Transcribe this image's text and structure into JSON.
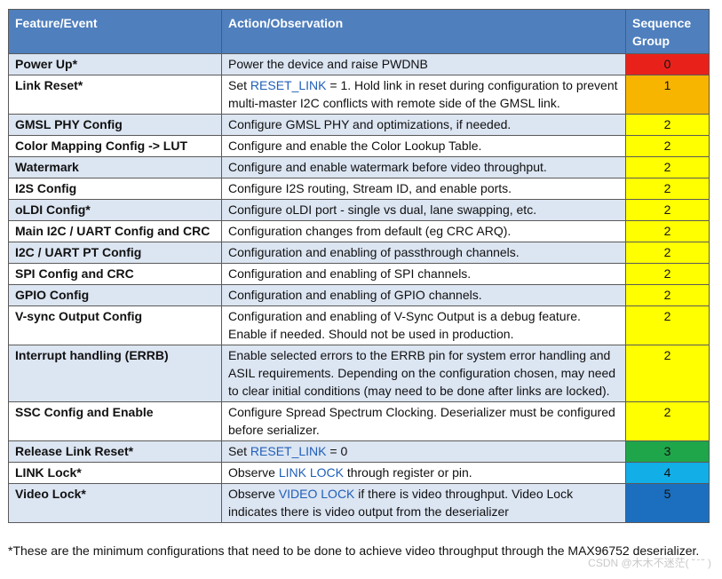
{
  "header": {
    "feature": "Feature/Event",
    "action": "Action/Observation",
    "group": "Sequence Group"
  },
  "rows": [
    {
      "feature": "Power Up*",
      "action_pre": "Power the device and raise PWDNB",
      "highlight": "",
      "action_post": "",
      "group": "0",
      "color": "#e8221b"
    },
    {
      "feature": "Link Reset*",
      "action_pre": "Set ",
      "highlight": "RESET_LINK",
      "action_post": " = 1. Hold link in reset during configuration to prevent multi-master I2C conflicts with remote side of the GMSL link.",
      "group": "1",
      "color": "#f7b500"
    },
    {
      "feature": "GMSL PHY Config",
      "action_pre": "Configure GMSL PHY and optimizations, if needed.",
      "highlight": "",
      "action_post": "",
      "group": "2",
      "color": "#ffff00"
    },
    {
      "feature": "Color Mapping Config -> LUT",
      "action_pre": "Configure and enable the Color Lookup Table.",
      "highlight": "",
      "action_post": "",
      "group": "2",
      "color": "#ffff00"
    },
    {
      "feature": "Watermark",
      "action_pre": "Configure and enable watermark before video throughput.",
      "highlight": "",
      "action_post": "",
      "group": "2",
      "color": "#ffff00"
    },
    {
      "feature": "I2S Config",
      "action_pre": "Configure I2S routing, Stream ID, and enable ports.",
      "highlight": "",
      "action_post": "",
      "group": "2",
      "color": "#ffff00"
    },
    {
      "feature": "oLDI Config*",
      "action_pre": "Configure oLDI port - single vs dual, lane swapping, etc.",
      "highlight": "",
      "action_post": "",
      "group": "2",
      "color": "#ffff00"
    },
    {
      "feature": "Main I2C / UART Config and CRC",
      "action_pre": "Configuration changes from default (eg CRC ARQ).",
      "highlight": "",
      "action_post": "",
      "group": "2",
      "color": "#ffff00"
    },
    {
      "feature": "I2C / UART PT Config",
      "action_pre": "Configuration and enabling of passthrough channels.",
      "highlight": "",
      "action_post": "",
      "group": "2",
      "color": "#ffff00"
    },
    {
      "feature": "SPI Config and CRC",
      "action_pre": "Configuration and enabling of SPI channels.",
      "highlight": "",
      "action_post": "",
      "group": "2",
      "color": "#ffff00"
    },
    {
      "feature": "GPIO Config",
      "action_pre": "Configuration and enabling of GPIO channels.",
      "highlight": "",
      "action_post": "",
      "group": "2",
      "color": "#ffff00"
    },
    {
      "feature": "V-sync Output Config",
      "action_pre": "Configuration and enabling of V-Sync Output is a debug feature. Enable if needed. Should not be used in production.",
      "highlight": "",
      "action_post": "",
      "group": "2",
      "color": "#ffff00"
    },
    {
      "feature": "Interrupt handling (ERRB)",
      "action_pre": "Enable selected errors to the ERRB pin for system error handling and ASIL requirements. Depending on the configuration chosen, may need to clear initial conditions (may need to be done after links are locked).",
      "highlight": "",
      "action_post": "",
      "group": "2",
      "color": "#ffff00"
    },
    {
      "feature": "SSC Config and Enable",
      "action_pre": "Configure Spread Spectrum Clocking. Deserializer must be configured before serializer.",
      "highlight": "",
      "action_post": "",
      "group": "2",
      "color": "#ffff00"
    },
    {
      "feature": "Release Link Reset*",
      "action_pre": "Set ",
      "highlight": "RESET_LINK",
      "action_post": " = 0",
      "group": "3",
      "color": "#1fa64a"
    },
    {
      "feature": "LINK Lock*",
      "action_pre": "Observe ",
      "highlight": "LINK LOCK",
      "action_post": " through register or pin.",
      "group": "4",
      "color": "#12aee8"
    },
    {
      "feature": "Video Lock*",
      "action_pre": "Observe ",
      "highlight": "VIDEO LOCK",
      "action_post": " if there is video throughput. Video Lock indicates there is video output from the deserializer",
      "group": "5",
      "color": "#1c6fbf"
    }
  ],
  "footnote": "*These are the minimum configurations that need to be done to achieve video throughput through the MAX96752 deserializer.",
  "watermark": "CSDN @木木不迷茫(  ˘ ̄ ˘ )"
}
